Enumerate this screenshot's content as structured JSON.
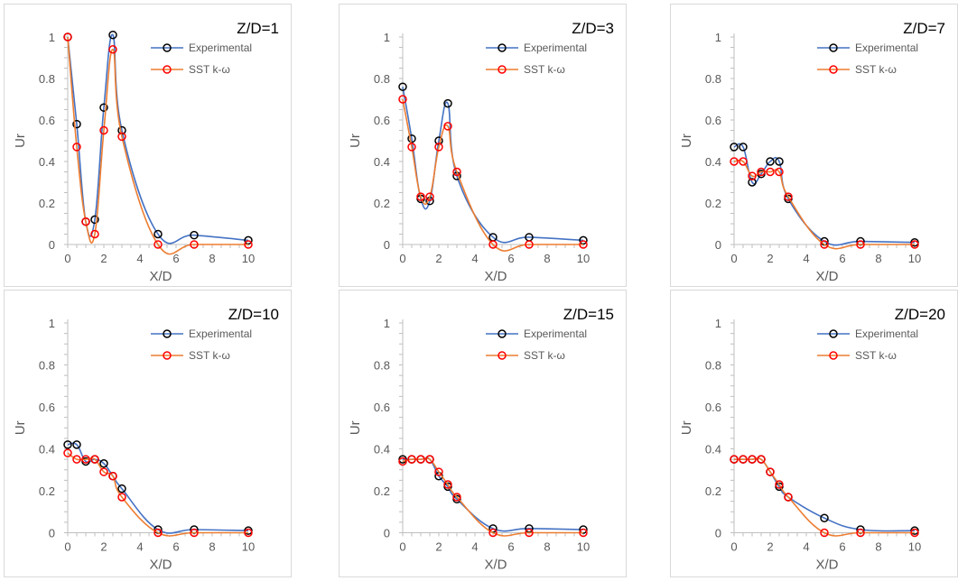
{
  "legend": {
    "experimental": "Experimental",
    "sst": "SST k-ω"
  },
  "colors": {
    "experimental_line": "#4472C4",
    "experimental_marker": "#000000",
    "sst_line": "#ED7D31",
    "sst_marker": "#FF0000",
    "axis": "#BFBFBF",
    "text": "#595959"
  },
  "chart_data": [
    {
      "type": "line",
      "title": "Z/D=1",
      "xlabel": "X/D",
      "ylabel": "Ur",
      "xlim": [
        0,
        10
      ],
      "ylim": [
        0,
        1
      ],
      "xticks": [
        0,
        2,
        4,
        6,
        8,
        10
      ],
      "yticks": [
        0,
        0.2,
        0.4,
        0.6,
        0.8,
        1
      ],
      "ytick_labels": [
        "0",
        "0.2",
        "0.4",
        "0.6",
        "0.8",
        "1"
      ],
      "legend_position": "top-right",
      "series": [
        {
          "name": "Experimental",
          "x": [
            0,
            0.5,
            1,
            1.5,
            2,
            2.5,
            3,
            5,
            7,
            10
          ],
          "y": [
            1,
            0.58,
            0.11,
            0.12,
            0.66,
            1.01,
            0.55,
            0.05,
            0.045,
            0.02
          ]
        },
        {
          "name": "SST k-ω",
          "x": [
            0,
            0.5,
            1,
            1.5,
            2,
            2.5,
            3,
            5,
            7,
            10
          ],
          "y": [
            1,
            0.47,
            0.11,
            0.05,
            0.55,
            0.94,
            0.52,
            0.0,
            0.0,
            0.0
          ]
        }
      ]
    },
    {
      "type": "line",
      "title": "Z/D=3",
      "xlabel": "X/D",
      "ylabel": "Ur",
      "xlim": [
        0,
        10
      ],
      "ylim": [
        0,
        1
      ],
      "xticks": [
        0,
        2,
        4,
        6,
        8,
        10
      ],
      "yticks": [
        0,
        0.2,
        0.4,
        0.6,
        0.8,
        1
      ],
      "ytick_labels": [
        "0",
        "0.2",
        "0.4",
        "0.6",
        "0.8",
        "1"
      ],
      "legend_position": "top-right",
      "series": [
        {
          "name": "Experimental",
          "x": [
            0,
            0.5,
            1,
            1.5,
            2,
            2.5,
            3,
            5,
            7,
            10
          ],
          "y": [
            0.76,
            0.51,
            0.22,
            0.21,
            0.5,
            0.68,
            0.33,
            0.035,
            0.035,
            0.02
          ]
        },
        {
          "name": "SST k-ω",
          "x": [
            0,
            0.5,
            1,
            1.5,
            2,
            2.5,
            3,
            5,
            7,
            10
          ],
          "y": [
            0.7,
            0.47,
            0.23,
            0.23,
            0.47,
            0.57,
            0.35,
            0.0,
            0.0,
            0.0
          ]
        }
      ]
    },
    {
      "type": "line",
      "title": "Z/D=7",
      "xlabel": "X/D",
      "ylabel": "Ur",
      "xlim": [
        0,
        10
      ],
      "ylim": [
        0,
        1
      ],
      "xticks": [
        0,
        2,
        4,
        6,
        8,
        10
      ],
      "yticks": [
        0,
        0.2,
        0.4,
        0.6,
        0.8,
        1
      ],
      "ytick_labels": [
        "0",
        "0.2",
        "0.4",
        "0.6",
        "0.8",
        "1"
      ],
      "legend_position": "top-right",
      "series": [
        {
          "name": "Experimental",
          "x": [
            0,
            0.5,
            1,
            1.5,
            2,
            2.5,
            3,
            5,
            7,
            10
          ],
          "y": [
            0.47,
            0.47,
            0.3,
            0.34,
            0.4,
            0.4,
            0.22,
            0.015,
            0.015,
            0.01
          ]
        },
        {
          "name": "SST k-ω",
          "x": [
            0,
            0.5,
            1,
            1.5,
            2,
            2.5,
            3,
            5,
            7,
            10
          ],
          "y": [
            0.4,
            0.4,
            0.33,
            0.35,
            0.35,
            0.35,
            0.23,
            0.0,
            0.0,
            0.0
          ]
        }
      ]
    },
    {
      "type": "line",
      "title": "Z/D=10",
      "xlabel": "X/D",
      "ylabel": "Ur",
      "xlim": [
        0,
        10
      ],
      "ylim": [
        0,
        1
      ],
      "xticks": [
        0,
        2,
        4,
        6,
        8,
        10
      ],
      "yticks": [
        0,
        0.2,
        0.4,
        0.6,
        0.8,
        1
      ],
      "ytick_labels": [
        "0",
        "0.2",
        "0.4",
        "0.6",
        "0.8",
        "1"
      ],
      "legend_position": "top-right",
      "series": [
        {
          "name": "Experimental",
          "x": [
            0,
            0.5,
            1,
            1.5,
            2,
            2.5,
            3,
            5,
            7,
            10
          ],
          "y": [
            0.42,
            0.42,
            0.34,
            0.35,
            0.33,
            0.27,
            0.21,
            0.015,
            0.015,
            0.01
          ]
        },
        {
          "name": "SST k-ω",
          "x": [
            0,
            0.5,
            1,
            1.5,
            2,
            2.5,
            3,
            5,
            7,
            10
          ],
          "y": [
            0.38,
            0.35,
            0.35,
            0.35,
            0.29,
            0.27,
            0.17,
            0.0,
            0.0,
            0.0
          ]
        }
      ]
    },
    {
      "type": "line",
      "title": "Z/D=15",
      "xlabel": "X/D",
      "ylabel": "Ur",
      "xlim": [
        0,
        10
      ],
      "ylim": [
        0,
        1
      ],
      "xticks": [
        0,
        2,
        4,
        6,
        8,
        10
      ],
      "yticks": [
        0,
        0.2,
        0.4,
        0.6,
        0.8,
        1
      ],
      "ytick_labels": [
        "0",
        "0.2",
        "0.4",
        "0.6",
        "0.8",
        "1"
      ],
      "legend_position": "top-right",
      "series": [
        {
          "name": "Experimental",
          "x": [
            0,
            0.5,
            1,
            1.5,
            2,
            2.5,
            3,
            5,
            7,
            10
          ],
          "y": [
            0.35,
            0.35,
            0.35,
            0.35,
            0.27,
            0.22,
            0.16,
            0.02,
            0.02,
            0.015
          ]
        },
        {
          "name": "SST k-ω",
          "x": [
            0,
            0.5,
            1,
            1.5,
            2,
            2.5,
            3,
            5,
            7,
            10
          ],
          "y": [
            0.34,
            0.35,
            0.35,
            0.35,
            0.29,
            0.23,
            0.17,
            0.0,
            0.0,
            0.0
          ]
        }
      ]
    },
    {
      "type": "line",
      "title": "Z/D=20",
      "xlabel": "X/D",
      "ylabel": "Ur",
      "xlim": [
        0,
        10
      ],
      "ylim": [
        0,
        1
      ],
      "xticks": [
        0,
        2,
        4,
        6,
        8,
        10
      ],
      "yticks": [
        0,
        0.2,
        0.4,
        0.6,
        0.8,
        1
      ],
      "ytick_labels": [
        "0",
        "0.2",
        "0.4",
        "0.6",
        "0.8",
        "1"
      ],
      "legend_position": "top-right",
      "series": [
        {
          "name": "Experimental",
          "x": [
            0,
            0.5,
            1,
            1.5,
            2,
            2.5,
            3,
            5,
            7,
            10
          ],
          "y": [
            0.35,
            0.35,
            0.35,
            0.35,
            0.29,
            0.22,
            0.17,
            0.07,
            0.015,
            0.01
          ]
        },
        {
          "name": "SST k-ω",
          "x": [
            0,
            0.5,
            1,
            1.5,
            2,
            2.5,
            3,
            5,
            7,
            10
          ],
          "y": [
            0.35,
            0.35,
            0.35,
            0.35,
            0.29,
            0.23,
            0.17,
            0.0,
            0.0,
            0.0
          ]
        }
      ]
    }
  ]
}
